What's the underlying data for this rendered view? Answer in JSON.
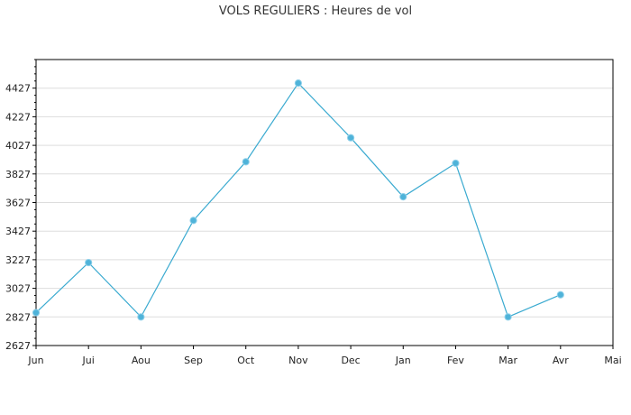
{
  "chart_data": {
    "type": "line",
    "title": "VOLS REGULIERS : Heures de vol",
    "xlabel": "",
    "ylabel": "",
    "categories": [
      "Jun",
      "Jui",
      "Aou",
      "Sep",
      "Oct",
      "Nov",
      "Dec",
      "Jan",
      "Fev",
      "Mar",
      "Avr",
      "Mai"
    ],
    "series": [
      {
        "values": [
          2857,
          3207,
          2827,
          3502,
          3912,
          4462,
          4080,
          3667,
          3902,
          2827,
          2982,
          null
        ]
      }
    ],
    "yticks": [
      2627,
      2827,
      3027,
      3227,
      3427,
      3627,
      3827,
      4027,
      4227,
      4427
    ],
    "ylim": [
      2627,
      4627
    ],
    "grid": true,
    "colors": {
      "series": "#4fb3d9",
      "line": "#3aaad0",
      "grid": "#dddddd",
      "axis": "#000000"
    }
  }
}
